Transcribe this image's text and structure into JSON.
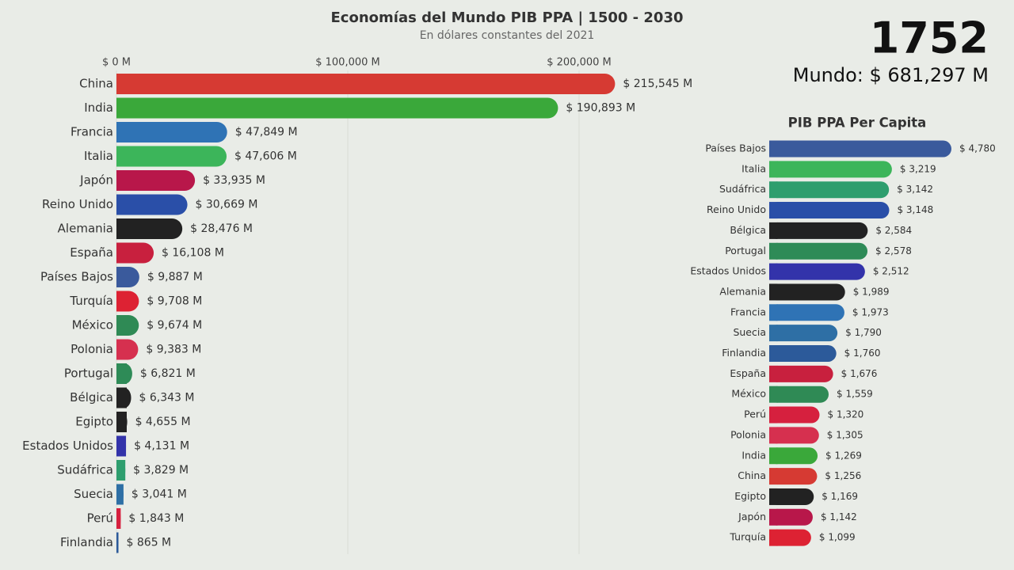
{
  "chart_data": [
    {
      "type": "bar",
      "orientation": "horizontal",
      "title": "Economías del Mundo PIB PPA | 1500 - 2030",
      "subtitle": "En dólares constantes del 2021",
      "annotations": [
        "1752",
        "Mundo: $ 681,297 M"
      ],
      "categories": [
        "China",
        "India",
        "Francia",
        "Italia",
        "Japón",
        "Reino Unido",
        "Alemania",
        "España",
        "Países Bajos",
        "Turquía",
        "México",
        "Polonia",
        "Portugal",
        "Bélgica",
        "Egipto",
        "Estados Unidos",
        "Sudáfrica",
        "Suecia",
        "Perú",
        "Finlandia"
      ],
      "values": [
        215545,
        190893,
        47849,
        47606,
        33935,
        30669,
        28476,
        16108,
        9887,
        9708,
        9674,
        9383,
        6821,
        6343,
        4655,
        4131,
        3829,
        3041,
        1843,
        865
      ],
      "value_labels": [
        "$ 215,545 M",
        "$ 190,893 M",
        "$ 47,849 M",
        "$ 47,606 M",
        "$ 33,935 M",
        "$ 30,669 M",
        "$ 28,476 M",
        "$ 16,108 M",
        "$ 9,887 M",
        "$ 9,708 M",
        "$ 9,674 M",
        "$ 9,383 M",
        "$ 6,821 M",
        "$ 6,343 M",
        "$ 4,655 M",
        "$ 4,131 M",
        "$ 3,829 M",
        "$ 3,041 M",
        "$ 1,843 M",
        "$ 865 M"
      ],
      "colors": [
        "#d63a33",
        "#3aa83a",
        "#2f73b5",
        "#3cb55a",
        "#b8174a",
        "#2a4fa8",
        "#222222",
        "#c8203e",
        "#3a5a9c",
        "#dd2233",
        "#2f8a55",
        "#d6304f",
        "#2e8b57",
        "#222222",
        "#222222",
        "#3333aa",
        "#2e9e6e",
        "#2e6fa5",
        "#d6203e",
        "#2c5a9a"
      ],
      "xlim": [
        0,
        250000
      ],
      "xticks": [
        {
          "value": 0,
          "label": "$ 0 M"
        },
        {
          "value": 100000,
          "label": "$ 100,000 M"
        },
        {
          "value": 200000,
          "label": "$ 200,000 M"
        }
      ]
    },
    {
      "type": "bar",
      "orientation": "horizontal",
      "title": "PIB PPA Per Capita",
      "categories": [
        "Países Bajos",
        "Italia",
        "Sudáfrica",
        "Reino Unido",
        "Bélgica",
        "Portugal",
        "Estados Unidos",
        "Alemania",
        "Francia",
        "Suecia",
        "Finlandia",
        "España",
        "México",
        "Perú",
        "Polonia",
        "India",
        "China",
        "Egipto",
        "Japón",
        "Turquía"
      ],
      "values": [
        4780,
        3219,
        3142,
        3148,
        2584,
        2578,
        2512,
        1989,
        1973,
        1790,
        1760,
        1676,
        1559,
        1320,
        1305,
        1269,
        1256,
        1169,
        1142,
        1099
      ],
      "value_labels": [
        "$ 4,780",
        "$ 3,219",
        "$ 3,142",
        "$ 3,148",
        "$ 2,584",
        "$ 2,578",
        "$ 2,512",
        "$ 1,989",
        "$ 1,973",
        "$ 1,790",
        "$ 1,760",
        "$ 1,676",
        "$ 1,559",
        "$ 1,320",
        "$ 1,305",
        "$ 1,269",
        "$ 1,256",
        "$ 1,169",
        "$ 1,142",
        "$ 1,099"
      ],
      "colors": [
        "#3a5a9c",
        "#3cb55a",
        "#2e9e6e",
        "#2a4fa8",
        "#222222",
        "#2e8b57",
        "#3333aa",
        "#222222",
        "#2f73b5",
        "#2e6fa5",
        "#2c5a9a",
        "#c8203e",
        "#2f8a55",
        "#d6203e",
        "#d6304f",
        "#3aa83a",
        "#d63a33",
        "#222222",
        "#b8174a",
        "#dd2233"
      ]
    }
  ]
}
